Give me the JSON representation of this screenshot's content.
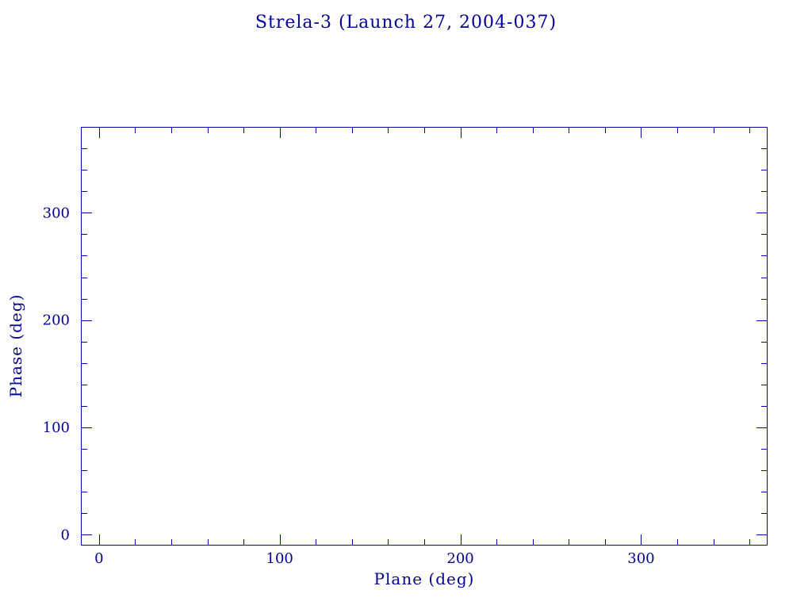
{
  "chart_data": {
    "type": "scatter",
    "title": "Strela-3 (Launch 27, 2004-037)",
    "xlabel": "Plane (deg)",
    "ylabel": "Phase (deg)",
    "xlim": [
      -10,
      370
    ],
    "ylim": [
      -10,
      380
    ],
    "xticks": [
      0,
      100,
      200,
      300
    ],
    "yticks": [
      0,
      100,
      200,
      300
    ],
    "minor_tick_interval": 20,
    "major_tick_len": 13,
    "minor_tick_len": 7,
    "points": [],
    "grid": false,
    "legend": null,
    "axis_color": "#000099",
    "text_color": "#000099",
    "background": "#ffffff"
  }
}
